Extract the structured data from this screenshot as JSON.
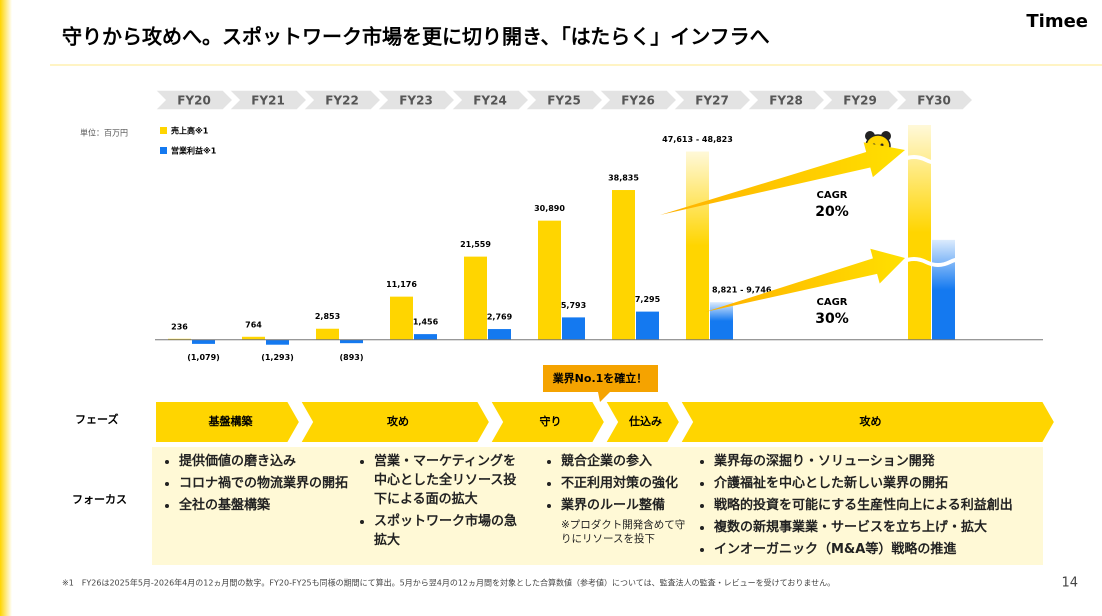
{
  "header": {
    "title": "守りから攻めへ。スポットワーク市場を更に切り開き、「はたらく」インフラへ",
    "logo": "Timee"
  },
  "chart_data": {
    "type": "bar",
    "unit_label": "単位：百万円",
    "categories": [
      "FY20",
      "FY21",
      "FY22",
      "FY23",
      "FY24",
      "FY25",
      "FY26",
      "FY27",
      "FY28",
      "FY29",
      "FY30"
    ],
    "series": [
      {
        "name": "売上高※1",
        "color": "#ffd500",
        "values": [
          236,
          764,
          2853,
          11176,
          21559,
          30890,
          38835,
          48823,
          null,
          null,
          55700
        ],
        "value_labels": [
          "236",
          "764",
          "2,853",
          "11,176",
          "21,559",
          "30,890",
          "38,835",
          "47,613 - 48,823",
          null,
          null,
          null
        ]
      },
      {
        "name": "営業利益※1",
        "color": "#1479f0",
        "values": [
          -1079,
          -1293,
          -893,
          1456,
          2769,
          5793,
          7295,
          9746,
          null,
          null,
          25900
        ],
        "value_labels": [
          "(1,079)",
          "(1,293)",
          "(893)",
          "1,456",
          "2,769",
          "5,793",
          "7,295",
          "8,821 - 9,746",
          null,
          null,
          null
        ]
      }
    ],
    "ylim": [
      -5000,
      57000
    ],
    "annotations": [
      {
        "label": "CAGR",
        "value": "20%"
      },
      {
        "label": "CAGR",
        "value": "30%"
      }
    ]
  },
  "phases": {
    "label": "フェーズ",
    "items": [
      "基盤構築",
      "攻め",
      "守り",
      "仕込み",
      "攻め"
    ],
    "callout": "業界No.1を確立！"
  },
  "focus": {
    "label": "フォーカス",
    "columns": [
      {
        "items": [
          "提供価値の磨き込み",
          "コロナ禍での物流業界の開拓",
          "全社の基盤構築"
        ]
      },
      {
        "items": [
          "営業・マーケティングを中心とした全リソース投下による面の拡大",
          "スポットワーク市場の急拡大"
        ]
      },
      {
        "items": [
          "競合企業の参入",
          "不正利用対策の強化",
          "業界のルール整備"
        ],
        "note": "※プロダクト開発含めて守りにリソースを投下"
      },
      {
        "items": [
          "業界毎の深掘り・ソリューション開発",
          "介護福祉を中心とした新しい業界の開拓",
          "戦略的投資を可能にする生産性向上による利益創出",
          "複数の新規事業業・サービスを立ち上げ・拡大",
          "インオーガニック（M&A等）戦略の推進"
        ]
      }
    ]
  },
  "footer": {
    "footnote": "※1　FY26は2025年5月-2026年4月の12ヵ月間の数字。FY20-FY25も同様の期間にて算出。5月から翌4月の12ヵ月間を対象とした合算数値（参考値）については、監査法人の監査・レビューを受けておりません。",
    "page": "14"
  }
}
